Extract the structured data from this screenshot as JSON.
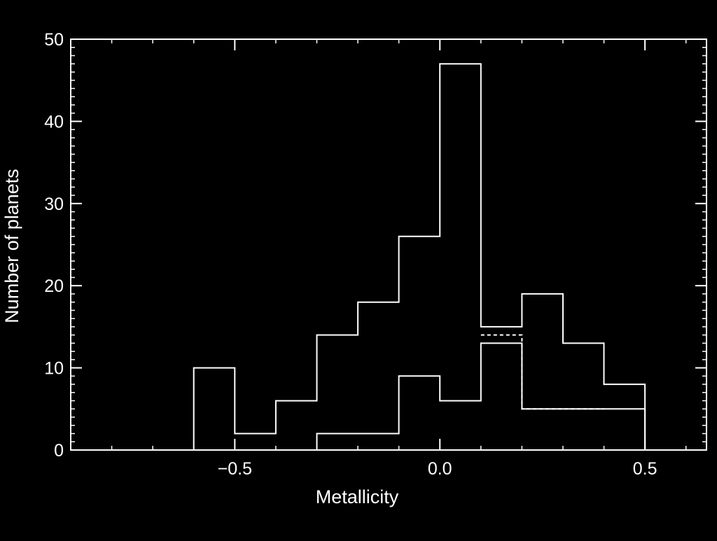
{
  "chart_data": {
    "type": "histogram",
    "xlabel": "Metallicity",
    "ylabel": "Number of planets",
    "xlim": [
      -0.9,
      0.65
    ],
    "ylim": [
      0,
      50
    ],
    "grid": false,
    "xticks": [
      {
        "value": -0.5,
        "label": "−0.5"
      },
      {
        "value": 0.0,
        "label": "0.0"
      },
      {
        "value": 0.5,
        "label": "0.5"
      }
    ],
    "yticks": [
      {
        "value": 0,
        "label": "0"
      },
      {
        "value": 10,
        "label": "10"
      },
      {
        "value": 20,
        "label": "20"
      },
      {
        "value": 30,
        "label": "30"
      },
      {
        "value": 40,
        "label": "40"
      },
      {
        "value": 50,
        "label": "50"
      }
    ],
    "bin_edges": [
      -0.9,
      -0.8,
      -0.7,
      -0.6,
      -0.5,
      -0.4,
      -0.3,
      -0.2,
      -0.1,
      0.0,
      0.1,
      0.2,
      0.3,
      0.4,
      0.5,
      0.6
    ],
    "series": [
      {
        "line_style": "solid",
        "values": [
          0,
          0,
          0,
          10,
          2,
          6,
          14,
          18,
          26,
          47,
          15,
          19,
          13,
          8,
          0
        ]
      },
      {
        "line_style": "solid",
        "values": [
          0,
          0,
          0,
          0,
          0,
          0,
          2,
          2,
          9,
          6,
          13,
          5,
          5,
          5,
          0
        ]
      },
      {
        "line_style": "dashed",
        "values": [
          0,
          0,
          0,
          0,
          0,
          0,
          0,
          0,
          0,
          0,
          14,
          5,
          5,
          0,
          0
        ]
      }
    ],
    "colors": {
      "background": "#000000",
      "foreground": "#ffffff"
    }
  }
}
